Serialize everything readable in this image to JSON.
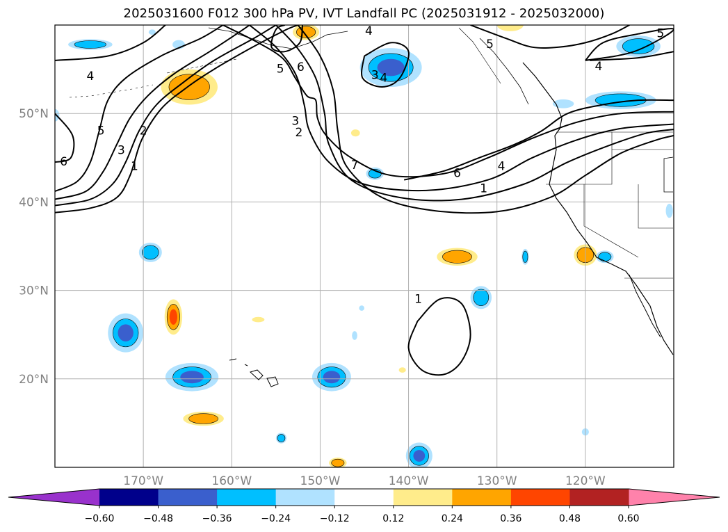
{
  "chart_data": {
    "type": "contour-map",
    "title": "2025031600 F012 300 hPa PV, IVT Landfall PC (2025031912 - 2025032000)",
    "map_extent": {
      "lon": [
        -180,
        -110
      ],
      "lat": [
        10,
        60
      ]
    },
    "grid": true,
    "lon_ticks": [
      -170,
      -160,
      -150,
      -140,
      -130,
      -120
    ],
    "lon_tick_labels": [
      "170°W",
      "160°W",
      "150°W",
      "140°W",
      "130°W",
      "120°W"
    ],
    "lat_ticks": [
      20,
      30,
      40,
      50
    ],
    "lat_tick_labels": [
      "20°N",
      "30°N",
      "40°N",
      "50°N"
    ],
    "colorbar": {
      "orientation": "horizontal",
      "extend": "both",
      "boundaries": [
        -0.6,
        -0.48,
        -0.36,
        -0.24,
        -0.12,
        0.12,
        0.24,
        0.36,
        0.48,
        0.6
      ],
      "tick_labels": [
        "−0.60",
        "−0.48",
        "−0.36",
        "−0.24",
        "−0.12",
        "0.12",
        "0.24",
        "0.36",
        "0.48",
        "0.60"
      ],
      "colors": [
        "#9932cc",
        "#00008b",
        "#3a5fcd",
        "#00bfff",
        "#b0e2ff",
        "#ffffff",
        "#ffec8b",
        "#ffa500",
        "#ff4500",
        "#b22222",
        "#ff82ab"
      ]
    },
    "pv_contours": [
      {
        "level": 1,
        "points": [
          [
            -180,
            38.8
          ],
          [
            -176,
            39.3
          ],
          [
            -173,
            40.5
          ],
          [
            -171.5,
            43
          ],
          [
            -170.2,
            47
          ],
          [
            -168,
            50.5
          ],
          [
            -165,
            53
          ],
          [
            -162,
            55
          ],
          [
            -158,
            57.3
          ],
          [
            -154,
            59.4
          ],
          [
            -152.5,
            60
          ]
        ]
      },
      {
        "level": 2,
        "points": [
          [
            -180,
            39.6
          ],
          [
            -176,
            40.3
          ],
          [
            -173.5,
            42
          ],
          [
            -172,
            44.5
          ],
          [
            -170.5,
            48
          ],
          [
            -168.5,
            51
          ],
          [
            -165.5,
            53.5
          ],
          [
            -162,
            56
          ],
          [
            -157.5,
            58.5
          ],
          [
            -155,
            60
          ]
        ]
      },
      {
        "level": 3,
        "points": [
          [
            -180,
            40.3
          ],
          [
            -176.5,
            41.2
          ],
          [
            -174.5,
            43.5
          ],
          [
            -173,
            46.5
          ],
          [
            -171.5,
            49.5
          ],
          [
            -169.5,
            52
          ],
          [
            -166.5,
            54.5
          ],
          [
            -162.5,
            57
          ],
          [
            -159,
            59.3
          ],
          [
            -158,
            60
          ]
        ]
      },
      {
        "level": 5,
        "points": [
          [
            -180,
            41.2
          ],
          [
            -177.5,
            42.3
          ],
          [
            -176,
            44.5
          ],
          [
            -175,
            48
          ],
          [
            -174,
            51.5
          ],
          [
            -172,
            54
          ],
          [
            -168,
            56.5
          ],
          [
            -163.5,
            58.5
          ],
          [
            -161,
            60
          ]
        ]
      },
      {
        "level": 4,
        "points": [
          [
            -180,
            56
          ],
          [
            -174,
            56.5
          ],
          [
            -170,
            58
          ],
          [
            -167.5,
            60
          ]
        ]
      },
      {
        "level": 6,
        "points": [
          [
            -180,
            50
          ],
          [
            -178,
            47.5
          ],
          [
            -178.2,
            45
          ],
          [
            -180,
            44.5
          ]
        ]
      },
      {
        "level": 1,
        "points": [
          [
            -152.5,
            60
          ],
          [
            -150,
            56.5
          ],
          [
            -148.5,
            52.5
          ],
          [
            -148,
            48
          ],
          [
            -147,
            44
          ],
          [
            -143,
            40.5
          ],
          [
            -137,
            39
          ],
          [
            -130,
            38.9
          ],
          [
            -124,
            40.5
          ],
          [
            -120,
            43
          ],
          [
            -116,
            45.5
          ],
          [
            -112,
            47
          ],
          [
            -110,
            47.5
          ]
        ]
      },
      {
        "level": 2,
        "points": [
          [
            -155,
            60
          ],
          [
            -152.5,
            57.3
          ],
          [
            -150.5,
            54
          ],
          [
            -149.5,
            50
          ],
          [
            -149,
            46.5
          ],
          [
            -146.5,
            42.5
          ],
          [
            -141,
            40.5
          ],
          [
            -134,
            40.3
          ],
          [
            -127,
            42
          ],
          [
            -122,
            44.5
          ],
          [
            -117,
            46.5
          ],
          [
            -113,
            47.8
          ],
          [
            -110,
            48.2
          ]
        ]
      },
      {
        "level": 3,
        "points": [
          [
            -158,
            60
          ],
          [
            -155,
            57.5
          ],
          [
            -152.8,
            54.5
          ],
          [
            -151.8,
            51
          ],
          [
            -151.2,
            48
          ],
          [
            -149,
            44.5
          ],
          [
            -145,
            42
          ],
          [
            -138,
            41.3
          ],
          [
            -131,
            42.5
          ],
          [
            -126,
            45
          ],
          [
            -121,
            47
          ],
          [
            -116,
            48.3
          ],
          [
            -110,
            48.8
          ]
        ]
      },
      {
        "level": 4,
        "points": [
          [
            -161,
            60
          ],
          [
            -157,
            58
          ],
          [
            -154.2,
            56.2
          ],
          [
            -152.8,
            54
          ],
          [
            -151.5,
            52
          ],
          [
            -150.5,
            51.5
          ],
          [
            -150.3,
            49.5
          ],
          [
            -149.3,
            47.5
          ],
          [
            -146.5,
            45
          ],
          [
            -142,
            43
          ],
          [
            -136,
            43.2
          ],
          [
            -131,
            45
          ],
          [
            -126,
            47.2
          ],
          [
            -121,
            49
          ],
          [
            -116,
            50
          ],
          [
            -110,
            50.2
          ]
        ]
      },
      {
        "level": 6,
        "points": [
          [
            -140.5,
            42.5
          ],
          [
            -136,
            43.5
          ],
          [
            -132,
            45
          ],
          [
            -128,
            46.5
          ],
          [
            -125,
            48
          ],
          [
            -122,
            50
          ],
          [
            -118,
            51
          ],
          [
            -114,
            51.5
          ],
          [
            -110,
            51.5
          ]
        ]
      },
      {
        "level": 6,
        "points": [
          [
            -152,
            60
          ],
          [
            -152.3,
            58
          ],
          [
            -154,
            57
          ],
          [
            -155.5,
            57.5
          ],
          [
            -155,
            59.5
          ],
          [
            -154,
            60
          ]
        ]
      },
      {
        "level": 5,
        "points": [
          [
            -133,
            60
          ],
          [
            -129,
            58.5
          ],
          [
            -126,
            57.5
          ],
          [
            -123,
            57.5
          ],
          [
            -120,
            58
          ],
          [
            -117,
            59
          ],
          [
            -115,
            60
          ]
        ]
      },
      {
        "level": 4,
        "points": [
          [
            -120,
            56
          ],
          [
            -118,
            58
          ],
          [
            -114,
            59
          ],
          [
            -110,
            59.5
          ],
          [
            -114.5,
            57
          ],
          [
            -120,
            56
          ]
        ]
      },
      {
        "level": 4,
        "points": [
          [
            -119.5,
            56
          ],
          [
            -114,
            56.3
          ],
          [
            -110,
            57
          ]
        ]
      },
      {
        "level": 3,
        "points": [
          [
            -145,
            56.5
          ],
          [
            -145.2,
            54
          ],
          [
            -143,
            53
          ],
          [
            -141,
            54
          ],
          [
            -140,
            57
          ],
          [
            -142,
            58
          ],
          [
            -145,
            56.5
          ]
        ]
      },
      {
        "level": 1,
        "points": [
          [
            -139,
            26.5
          ],
          [
            -136.5,
            29
          ],
          [
            -134,
            28.5
          ],
          [
            -133,
            25
          ],
          [
            -134,
            22
          ],
          [
            -136,
            20.5
          ],
          [
            -138.5,
            21
          ],
          [
            -140,
            23.5
          ],
          [
            -139,
            26.5
          ]
        ]
      }
    ],
    "pv_contour_labels": [
      {
        "text": "4",
        "lon": -176,
        "lat": 54.2
      },
      {
        "text": "5",
        "lon": -174.8,
        "lat": 48
      },
      {
        "text": "2",
        "lon": -170,
        "lat": 48
      },
      {
        "text": "3",
        "lon": -172.5,
        "lat": 45.8
      },
      {
        "text": "1",
        "lon": -171,
        "lat": 44
      },
      {
        "text": "6",
        "lon": -179,
        "lat": 44.5
      },
      {
        "text": "5",
        "lon": -154.5,
        "lat": 55
      },
      {
        "text": "6",
        "lon": -152.2,
        "lat": 55.2
      },
      {
        "text": "4",
        "lon": -144.5,
        "lat": 59.3
      },
      {
        "text": "3",
        "lon": -143.8,
        "lat": 54.3
      },
      {
        "text": "4",
        "lon": -142.8,
        "lat": 54
      },
      {
        "text": "3",
        "lon": -152.8,
        "lat": 49.1
      },
      {
        "text": "2",
        "lon": -152.4,
        "lat": 47.8
      },
      {
        "text": "7",
        "lon": -146.1,
        "lat": 44.1
      },
      {
        "text": "6",
        "lon": -134.5,
        "lat": 43.2
      },
      {
        "text": "4",
        "lon": -129.5,
        "lat": 44
      },
      {
        "text": "1",
        "lon": -131.5,
        "lat": 41.5
      },
      {
        "text": "5",
        "lon": -130.8,
        "lat": 57.8
      },
      {
        "text": "4",
        "lon": -118.5,
        "lat": 55.3
      },
      {
        "text": "5",
        "lon": -111.5,
        "lat": 59
      },
      {
        "text": "1",
        "lon": -138.9,
        "lat": 29
      }
    ],
    "pc_anomalies": [
      {
        "lon": -164.8,
        "lat": 53,
        "rx": 3.2,
        "ry": 2,
        "value": 0.28
      },
      {
        "lon": -151.6,
        "lat": 59.2,
        "rx": 1.5,
        "ry": 0.9,
        "value": 0.26
      },
      {
        "lon": -128.5,
        "lat": 60,
        "rx": 1.5,
        "ry": 0.7,
        "value": 0.2
      },
      {
        "lon": -146,
        "lat": 47.8,
        "rx": 0.5,
        "ry": 0.4,
        "value": 0.2
      },
      {
        "lon": -134.5,
        "lat": 33.8,
        "rx": 2.3,
        "ry": 1,
        "value": 0.28
      },
      {
        "lon": -120,
        "lat": 34,
        "rx": 1.3,
        "ry": 1.2,
        "value": 0.3
      },
      {
        "lon": -166.6,
        "lat": 27,
        "rx": 1,
        "ry": 2,
        "value": 0.4
      },
      {
        "lon": -157,
        "lat": 26.7,
        "rx": 0.7,
        "ry": 0.3,
        "value": 0.2
      },
      {
        "lon": -163.2,
        "lat": 15.5,
        "rx": 2.3,
        "ry": 0.8,
        "value": 0.28
      },
      {
        "lon": -148,
        "lat": 10.5,
        "rx": 1,
        "ry": 0.6,
        "value": 0.26
      },
      {
        "lon": -140.7,
        "lat": 21,
        "rx": 0.4,
        "ry": 0.3,
        "value": 0.2
      },
      {
        "lon": -142,
        "lat": 55.2,
        "rx": 3.5,
        "ry": 2.2,
        "value": -0.4
      },
      {
        "lon": -176,
        "lat": 57.8,
        "rx": 2.5,
        "ry": 0.6,
        "value": -0.28
      },
      {
        "lon": -166,
        "lat": 57.8,
        "rx": 0.7,
        "ry": 0.5,
        "value": -0.2
      },
      {
        "lon": -169,
        "lat": 59.2,
        "rx": 0.4,
        "ry": 0.3,
        "value": -0.15
      },
      {
        "lon": -114,
        "lat": 57.6,
        "rx": 2.5,
        "ry": 1.2,
        "value": -0.3
      },
      {
        "lon": -116,
        "lat": 51.5,
        "rx": 4,
        "ry": 1,
        "value": -0.32
      },
      {
        "lon": -122.5,
        "lat": 51.1,
        "rx": 1.2,
        "ry": 0.5,
        "value": -0.2
      },
      {
        "lon": -143.8,
        "lat": 43.2,
        "rx": 1,
        "ry": 0.7,
        "value": -0.26
      },
      {
        "lon": -169.2,
        "lat": 34.3,
        "rx": 1.3,
        "ry": 1.1,
        "value": -0.32
      },
      {
        "lon": -172,
        "lat": 25.2,
        "rx": 2,
        "ry": 2.2,
        "value": -0.45
      },
      {
        "lon": -164.5,
        "lat": 20.2,
        "rx": 3,
        "ry": 1.6,
        "value": -0.45
      },
      {
        "lon": -148.7,
        "lat": 20.2,
        "rx": 2.2,
        "ry": 1.6,
        "value": -0.4
      },
      {
        "lon": -138.8,
        "lat": 11.3,
        "rx": 1.5,
        "ry": 1.5,
        "value": -0.45
      },
      {
        "lon": -131.8,
        "lat": 29.2,
        "rx": 1.2,
        "ry": 1.3,
        "value": -0.3
      },
      {
        "lon": -126.8,
        "lat": 33.8,
        "rx": 0.4,
        "ry": 0.9,
        "value": -0.26
      },
      {
        "lon": -117.8,
        "lat": 33.8,
        "rx": 1,
        "ry": 0.7,
        "value": -0.28
      },
      {
        "lon": -110.5,
        "lat": 39,
        "rx": 0.4,
        "ry": 0.8,
        "value": -0.2
      },
      {
        "lon": -154.4,
        "lat": 13.3,
        "rx": 0.6,
        "ry": 0.6,
        "value": -0.28
      },
      {
        "lon": -145.3,
        "lat": 28,
        "rx": 0.3,
        "ry": 0.3,
        "value": -0.2
      },
      {
        "lon": -146.1,
        "lat": 24.9,
        "rx": 0.3,
        "ry": 0.5,
        "value": -0.2
      },
      {
        "lon": -120,
        "lat": 14,
        "rx": 0.4,
        "ry": 0.4,
        "value": -0.2
      },
      {
        "lon": -180,
        "lat": 49.8,
        "rx": 0.5,
        "ry": 0.7,
        "value": -0.2
      }
    ]
  }
}
